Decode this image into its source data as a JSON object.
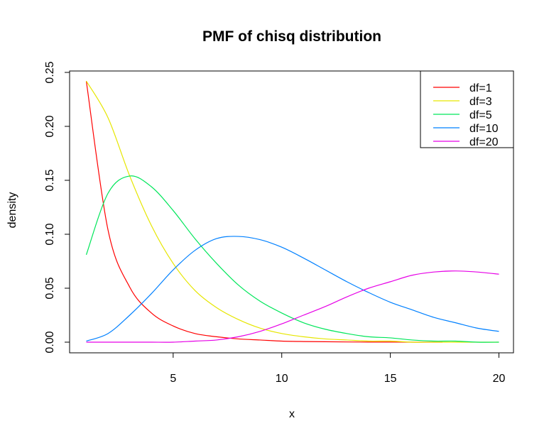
{
  "chart_data": {
    "type": "line",
    "title": "PMF of chisq distribution",
    "xlabel": "x",
    "ylabel": "density",
    "xlim": [
      0.0,
      21.0
    ],
    "ylim": [
      -0.01,
      0.25
    ],
    "x_ticks": [
      5,
      10,
      15,
      20
    ],
    "x_tick_labels": [
      "5",
      "10",
      "15",
      "20"
    ],
    "y_ticks": [
      0.0,
      0.05,
      0.1,
      0.15,
      0.2,
      0.25
    ],
    "y_tick_labels": [
      "0.00",
      "0.05",
      "0.10",
      "0.15",
      "0.20",
      "0.25"
    ],
    "grid": false,
    "legend_position": "top-right",
    "x": [
      1,
      2,
      3,
      4,
      5,
      6,
      7,
      8,
      9,
      10,
      11,
      12,
      13,
      14,
      15,
      16,
      17,
      18,
      19,
      20
    ],
    "series": [
      {
        "name": "df=1",
        "color": "#ff0000",
        "x": [
          1,
          2,
          3,
          4,
          5,
          6,
          7,
          8,
          9,
          10,
          11,
          12,
          13,
          14,
          15,
          16,
          17,
          17.4
        ],
        "values": [
          0.242,
          0.104,
          0.051,
          0.027,
          0.015,
          0.008,
          0.005,
          0.003,
          0.002,
          0.001,
          0.0006,
          0.0004,
          0.0002,
          0.0001,
          0.0001,
          0.0,
          0.0,
          0.0
        ]
      },
      {
        "name": "df=3",
        "color": "#e6e600",
        "values": [
          0.242,
          0.208,
          0.154,
          0.108,
          0.073,
          0.048,
          0.032,
          0.021,
          0.013,
          0.008,
          0.005,
          0.003,
          0.002,
          0.001,
          0.001,
          0.0,
          0.0,
          0.0,
          0.0,
          0.0
        ]
      },
      {
        "name": "df=5",
        "color": "#00e65a",
        "values": [
          0.081,
          0.138,
          0.154,
          0.144,
          0.122,
          0.096,
          0.073,
          0.053,
          0.038,
          0.027,
          0.018,
          0.012,
          0.008,
          0.005,
          0.004,
          0.002,
          0.001,
          0.001,
          0.0,
          0.0
        ]
      },
      {
        "name": "df=10",
        "color": "#0080ff",
        "values": [
          0.001,
          0.008,
          0.025,
          0.045,
          0.067,
          0.085,
          0.096,
          0.098,
          0.095,
          0.088,
          0.078,
          0.067,
          0.056,
          0.046,
          0.037,
          0.03,
          0.023,
          0.018,
          0.013,
          0.01
        ]
      },
      {
        "name": "df=20",
        "color": "#e600e6",
        "values": [
          0.0,
          0.0,
          0.0,
          0.0,
          0.0,
          0.001,
          0.002,
          0.005,
          0.01,
          0.017,
          0.025,
          0.033,
          0.042,
          0.05,
          0.056,
          0.062,
          0.065,
          0.066,
          0.065,
          0.063
        ]
      }
    ]
  }
}
